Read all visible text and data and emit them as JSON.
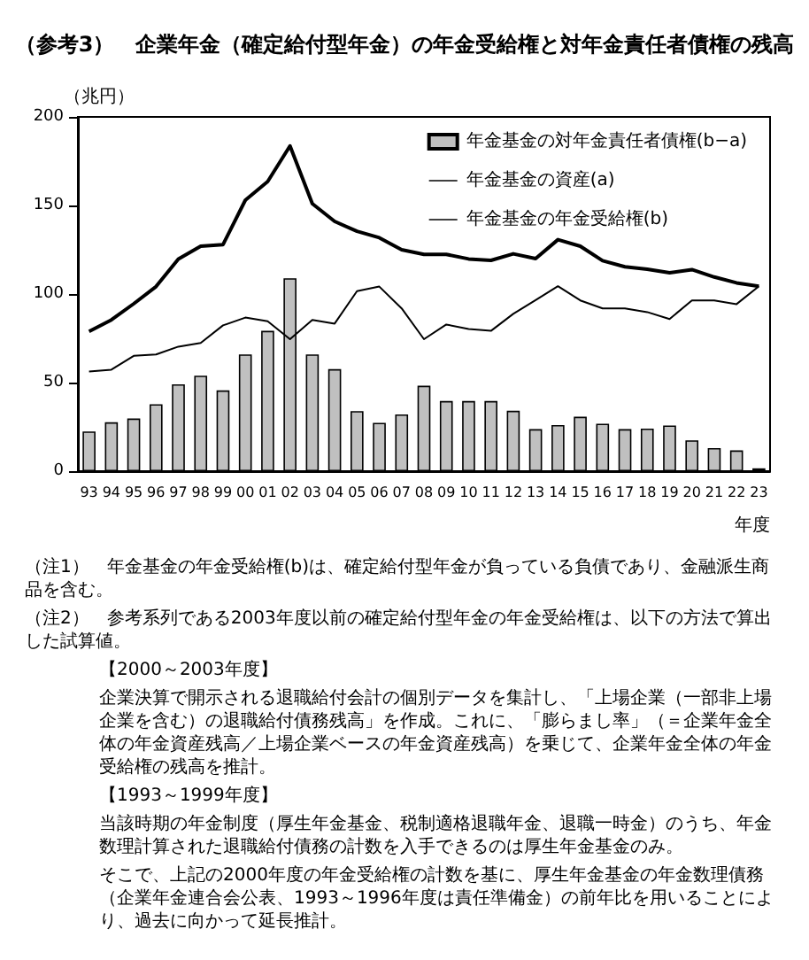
{
  "chart_data": {
    "type": "bar",
    "title": "（参考3）　企業年金（確定給付型年金）の年金受給権と対年金責任者債権の残高",
    "ylabel": "（兆円）",
    "xlabel": "年度",
    "categories": [
      "93",
      "94",
      "95",
      "96",
      "97",
      "98",
      "99",
      "00",
      "01",
      "02",
      "03",
      "04",
      "05",
      "06",
      "07",
      "08",
      "09",
      "10",
      "11",
      "12",
      "13",
      "14",
      "15",
      "16",
      "17",
      "18",
      "19",
      "20",
      "21",
      "22",
      "23"
    ],
    "series": [
      {
        "name": "年金基金の対年金責任者債権(b−a)",
        "color": "#c0c0c0",
        "values": [
          22.4,
          27.6,
          29.7,
          37.8,
          49,
          53.9,
          45.6,
          65.9,
          79.2,
          108.9,
          65.9,
          57.6,
          33.9,
          27.3,
          32,
          48.2,
          39.6,
          39.6,
          39.6,
          34.1,
          23.7,
          26,
          30.7,
          26.8,
          23.7,
          24,
          25.8,
          17.4,
          13,
          11.7,
          1.6
        ]
      },
      {
        "name": "年金基金の資産(a)",
        "type": "line",
        "color": "#000000",
        "values": [
          56.3,
          57.3,
          65.1,
          65.9,
          70.3,
          72.4,
          82.3,
          86.7,
          84.6,
          74.5,
          85.4,
          83.3,
          101.6,
          104.2,
          91.9,
          74.5,
          82.8,
          80.2,
          79.2,
          88.8,
          96.6,
          104.4,
          96.4,
          91.9,
          91.9,
          89.8,
          85.9,
          96.4,
          96.4,
          94.3,
          104.4
        ]
      },
      {
        "name": "年金基金の年金受給権(b)",
        "type": "line",
        "color": "#000000",
        "values": [
          78.9,
          85.4,
          94.5,
          104.2,
          119.8,
          127,
          127.9,
          153,
          163.5,
          183.6,
          151,
          141,
          135.4,
          131.8,
          125,
          122.4,
          122.4,
          119.8,
          119,
          122.7,
          120,
          130.7,
          127,
          118.8,
          115.4,
          114,
          112,
          113.8,
          109.6,
          106.3,
          104.4
        ]
      }
    ],
    "ylim": [
      0,
      200
    ],
    "yticks": [
      0,
      50,
      100,
      150,
      200
    ],
    "legend": "top right",
    "marker": "none",
    "annotations": [
      "（注1）　年金基金の年金受給権(b)は、確定給付型年金が負っている負債であり、金融派生商品を含む。",
      "（注2）　参考系列である2003年度以前の確定給付型年金の年金受給権は、以下の方法で算出した試算値。",
      "【2000～2003年度】",
      "企業決算で開示される退職給付会計の個別データを集計し、「上場企業（一部非上場企業を含む）の退職給付債務残高」を作成。これに、「膨らまし率」（＝企業年金全体の年金資産残高／上場企業ベースの年金資産残高）を乗じて、企業年金全体の年金受給権の残高を推計。",
      "【1993～1999年度】",
      "当該時期の年金制度（厚生年金基金、税制適格退職年金、退職一時金）のうち、年金数理計算された退職給付債務の計数を入手できるのは厚生年金基金のみ。",
      "そこで、上記の2000年度の年金受給権の計数を基に、厚生年金基金の年金数理債務（企業年金連合会公表、1993～1996年度は責任準備金）の前年比を用いることにより、過去に向かって延長推計。"
    ]
  }
}
